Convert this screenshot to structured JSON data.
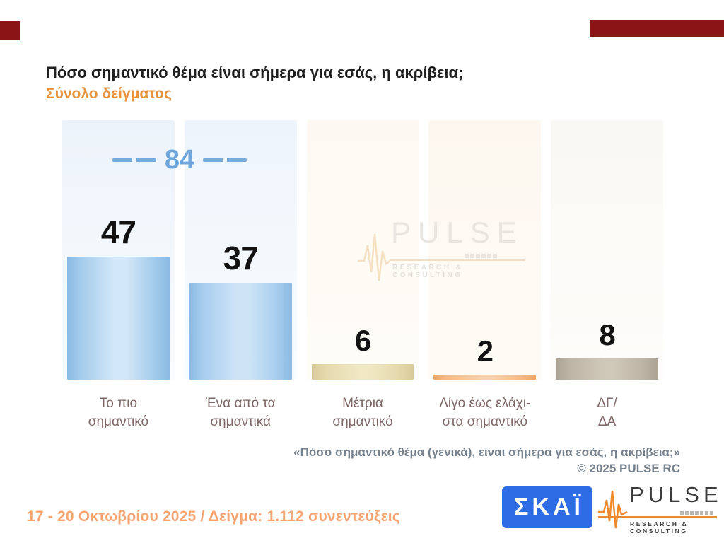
{
  "slide": {
    "title": "Πόσο σημαντικό θέμα είναι σήμερα για εσάς, η ακρίβεια;",
    "subtitle": "Σύνολο δείγματος",
    "footnote_line1": "«Πόσο σημαντικό θέμα (γενικά), είναι σήμερα για εσάς, η ακρίβεια;»",
    "footnote_line2": "©  2025  PULSE RC",
    "footer_left": "17 - 20 Οκτωβρίου 2025  /  Δείγμα:  1.112 συνεντεύξεις"
  },
  "chart_data": {
    "type": "bar",
    "title": "Πόσο σημαντικό θέμα είναι σήμερα για εσάς, η ακρίβεια;",
    "subtitle": "Σύνολο δείγματος",
    "categories": [
      "Το πιο σημαντικό",
      "Ένα από τα σημαντικά",
      "Μέτρια σημαντικό",
      "Λίγο έως ελάχιστα σημαντικό",
      "ΔΓ/ΔΑ"
    ],
    "values": [
      47,
      37,
      6,
      2,
      8
    ],
    "ylim": [
      0,
      100
    ],
    "grid": false,
    "legend": false,
    "combined_top2": {
      "label": "84",
      "covers": [
        "Το πιο σημαντικό",
        "Ένα από τα σημαντικά"
      ]
    },
    "bars": [
      {
        "label": "47",
        "value": 47,
        "size": "big",
        "category_lines": [
          "Το πιο",
          "σημαντικό"
        ],
        "edge": "#8ABAE4",
        "mid": "#A5CCEC",
        "center": "#D2E7F8",
        "panel_top": "#ECF3FA",
        "panel_bottom": "#F9FCFE"
      },
      {
        "label": "37",
        "value": 37,
        "size": "big",
        "category_lines": [
          "Ένα από τα",
          "σημαντικά"
        ],
        "edge": "#8ABAE4",
        "mid": "#A9CEEE",
        "center": "#CDE4F7",
        "panel_top": "#EDF4FB",
        "panel_bottom": "#F9FCFE"
      },
      {
        "label": "6",
        "value": 6,
        "size": "small",
        "category_lines": [
          "Μέτρια",
          "σημαντικό"
        ],
        "edge": "#D9CA9A",
        "mid": "#E5D9AD",
        "center": "#F0E7C3",
        "panel_top": "#FDF9F2",
        "panel_bottom": "#FEFCF7"
      },
      {
        "label": "2",
        "value": 2,
        "size": "small",
        "category_lines": [
          "Λίγο έως ελάχι-",
          "στα σημαντικό"
        ],
        "edge": "#ECA667",
        "mid": "#F1BC8B",
        "center": "#F6CFAC",
        "panel_top": "#FDF7EF",
        "panel_bottom": "#FEFBF5"
      },
      {
        "label": "8",
        "value": 8,
        "size": "small",
        "category_lines": [
          "ΔΓ/",
          "ΔΑ"
        ],
        "edge": "#ACA293",
        "mid": "#BFB5A6",
        "center": "#CFC7B8",
        "panel_top": "#FAF8F4",
        "panel_bottom": "#FDFCFA"
      }
    ]
  },
  "watermark": {
    "brand": "PULSE",
    "tagline": "RESEARCH & CONSULTING"
  },
  "logos": {
    "skai_text": "ΣΚΑΪ",
    "pulse_text": "PULSE",
    "pulse_tagline": "RESEARCH & CONSULTING"
  },
  "colors": {
    "corner_red": "#8B1417",
    "subtitle_orange": "#E8923B",
    "annotation_blue": "#6FA6DB",
    "category_label": "#7E6666",
    "footnote_gray": "#76818E",
    "footer_salmon": "#F7A470",
    "skai_blue": "#2E6CE6",
    "pulse_orange": "#EE8A2E"
  }
}
